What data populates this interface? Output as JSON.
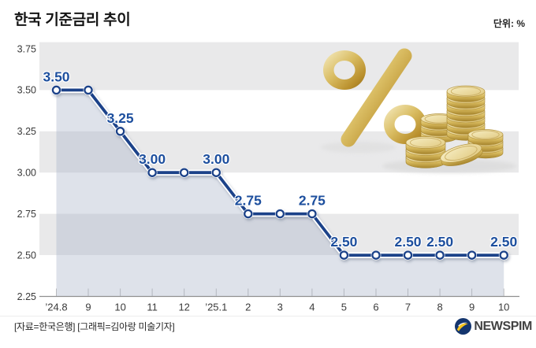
{
  "header": {
    "title": "한국 기준금리 추이",
    "unit_label": "단위: %"
  },
  "chart_data": {
    "type": "line",
    "title": "한국 기준금리 추이",
    "unit": "%",
    "x": [
      "’24.8",
      "9",
      "10",
      "11",
      "12",
      "’25.1",
      "2",
      "3",
      "4",
      "5",
      "6",
      "7",
      "8",
      "9",
      "10"
    ],
    "values": [
      3.5,
      3.5,
      3.25,
      3.0,
      3.0,
      3.0,
      2.75,
      2.75,
      2.75,
      2.5,
      2.5,
      2.5,
      2.5,
      2.5,
      2.5
    ],
    "point_labels": {
      "0": "3.50",
      "2": "3.25",
      "3": "3.00",
      "5": "3.00",
      "6": "2.75",
      "8": "2.75",
      "9": "2.50",
      "11": "2.50",
      "12": "2.50",
      "14": "2.50"
    },
    "y_ticks": [
      "3.75",
      "3.50",
      "3.25",
      "3.00",
      "2.75",
      "2.50",
      "2.25"
    ],
    "ylim": [
      2.25,
      3.79
    ],
    "bands": [
      [
        3.5,
        3.79
      ],
      [
        3.0,
        3.25
      ],
      [
        2.5,
        2.75
      ]
    ],
    "grid": "banded-rows",
    "legend_position": "none",
    "colors": {
      "line": "#1b4389",
      "point_fill": "#ffffff",
      "value_label": "#1d4f9e",
      "band_gray": "#e9e9ea",
      "area_fill": "#a9b4c9",
      "axis": "#8f8f8f",
      "tick": "#bbbbbb",
      "axis_label": "#3a3a3a",
      "gold_light": "#f7eec6",
      "gold_mid": "#d9bc62",
      "gold_dark": "#8f6b1c",
      "logo_navy": "#14356e",
      "logo_yellow": "#f6c41c"
    }
  },
  "illustration": {
    "icon": "gold-percent-and-coins"
  },
  "footer": {
    "credit": "[자료=한국은행] [그래픽=김아랑 미술기자]",
    "logo_text": "NEWSPIM"
  }
}
